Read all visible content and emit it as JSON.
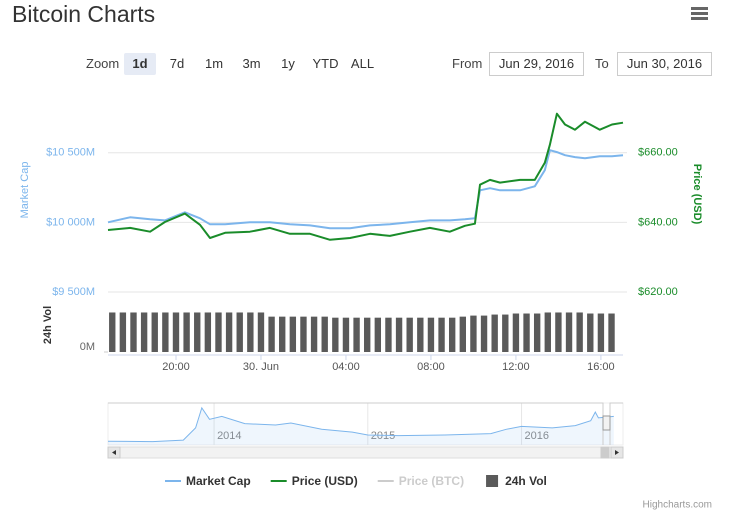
{
  "header": {
    "title": "Bitcoin Charts"
  },
  "range_selector": {
    "zoom_label": "Zoom",
    "buttons": [
      "1d",
      "7d",
      "1m",
      "3m",
      "1y",
      "YTD",
      "ALL"
    ],
    "selected": 0,
    "from_label": "From",
    "from_value": "Jun 29, 2016",
    "to_label": "To",
    "to_value": "Jun 30, 2016"
  },
  "chart_data": {
    "type": "line",
    "y_label": "Market Cap",
    "y2_label": "Price (USD)",
    "vol_label": "24h Vol",
    "xlim": [
      16.8,
      41.04
    ],
    "xticks": [
      {
        "value": 20,
        "label": "20:00"
      },
      {
        "value": 24,
        "label": "30. Jun"
      },
      {
        "value": 28,
        "label": "04:00"
      },
      {
        "value": 32,
        "label": "08:00"
      },
      {
        "value": 36,
        "label": "12:00"
      },
      {
        "value": 40,
        "label": "16:00"
      }
    ],
    "ylim": [
      9500,
      10950
    ],
    "yticks": [
      {
        "value": 9500,
        "label": "$9 500M"
      },
      {
        "value": 10000,
        "label": "$10 000M"
      },
      {
        "value": 10500,
        "label": "$10 500M"
      }
    ],
    "y2lim": [
      620,
      678
    ],
    "y2ticks": [
      {
        "value": 620,
        "label": "$620.00"
      },
      {
        "value": 640,
        "label": "$640.00"
      },
      {
        "value": 660,
        "label": "$660.00"
      }
    ],
    "vol_ylim": [
      0,
      50
    ],
    "vol_yticks": [
      {
        "value": 0,
        "label": "0M"
      }
    ],
    "grid": true,
    "legend": "bottom",
    "series": [
      {
        "name": "Market Cap",
        "color": "#7cb5ec",
        "type": "line",
        "x": [
          16.8,
          17.84,
          18.78,
          19.48,
          20.42,
          21.13,
          21.6,
          22.31,
          23.48,
          24.42,
          25.36,
          26.31,
          27.25,
          28.19,
          29.13,
          30.07,
          31.01,
          31.95,
          32.89,
          33.6,
          34.07,
          34.31,
          34.78,
          35.25,
          36.19,
          36.89,
          37.36,
          37.6,
          37.93,
          38.31,
          38.78,
          39.25,
          39.95,
          40.52,
          41.04
        ],
        "values": [
          10000,
          10036,
          10022,
          10014,
          10072,
          10029,
          9986,
          9986,
          10000,
          10000,
          9986,
          9978,
          9957,
          9957,
          9978,
          9986,
          10000,
          10014,
          10014,
          10022,
          10029,
          10230,
          10245,
          10230,
          10230,
          10259,
          10374,
          10518,
          10504,
          10482,
          10468,
          10460,
          10475,
          10475,
          10482
        ]
      },
      {
        "name": "Price (USD)",
        "color": "#1a8c2a",
        "type": "line",
        "axis": "y2",
        "x": [
          16.8,
          17.84,
          18.78,
          19.48,
          20.42,
          21.13,
          21.6,
          22.31,
          23.48,
          24.42,
          25.36,
          26.31,
          27.25,
          28.19,
          29.13,
          30.07,
          31.01,
          31.95,
          32.89,
          33.6,
          34.07,
          34.31,
          34.78,
          35.25,
          36.19,
          36.89,
          37.36,
          37.6,
          37.93,
          38.31,
          38.78,
          39.25,
          39.95,
          40.52,
          41.04
        ],
        "values": [
          637.8,
          638.4,
          637.3,
          640.1,
          642.5,
          639.3,
          635.5,
          637.0,
          637.3,
          638.4,
          636.7,
          636.7,
          635.0,
          635.5,
          636.7,
          636.1,
          637.3,
          638.4,
          637.3,
          639.0,
          639.6,
          650.8,
          652.2,
          651.4,
          652.2,
          652.2,
          657.1,
          662.3,
          671.2,
          668.1,
          666.6,
          668.9,
          666.6,
          668.1,
          668.6
        ]
      },
      {
        "name": "Price (BTC)",
        "color": "#cccccc",
        "type": "line",
        "visible": false
      },
      {
        "name": "24h Vol",
        "color": "#5a5a5a",
        "type": "bar",
        "axis": "vol",
        "x": [
          17,
          17.5,
          18,
          18.5,
          19,
          19.5,
          20,
          20.5,
          21,
          21.5,
          22,
          22.5,
          23,
          23.5,
          24,
          24.5,
          25,
          25.5,
          26,
          26.5,
          27,
          27.5,
          28,
          28.5,
          29,
          29.5,
          30,
          30.5,
          31,
          31.5,
          32,
          32.5,
          33,
          33.5,
          34,
          34.5,
          35,
          35.5,
          36,
          36.5,
          37,
          37.5,
          38,
          38.5,
          39,
          39.5,
          40,
          40.5
        ],
        "values": [
          38,
          38,
          38,
          38,
          38,
          38,
          38,
          38,
          38,
          38,
          38,
          38,
          38,
          38,
          38,
          34,
          34,
          34,
          34,
          34,
          34,
          33,
          33,
          33,
          33,
          33,
          33,
          33,
          33,
          33,
          33,
          33,
          33,
          34,
          35,
          35,
          36,
          36,
          37,
          37,
          37,
          38,
          38,
          38,
          38,
          37,
          37,
          37
        ]
      }
    ],
    "navigator": {
      "color": "#7cb5ec",
      "xlim": [
        2013.31,
        2016.66
      ],
      "xticks": [
        2014,
        2015,
        2016
      ],
      "ylim": [
        0,
        14000
      ],
      "x": [
        2013.31,
        2013.6,
        2013.8,
        2013.88,
        2013.92,
        2013.97,
        2014.05,
        2014.2,
        2014.4,
        2014.5,
        2014.7,
        2014.9,
        2015.0,
        2015.2,
        2015.5,
        2015.8,
        2015.9,
        2016.0,
        2016.2,
        2016.35,
        2016.45,
        2016.48,
        2016.5,
        2016.6
      ],
      "values": [
        1300,
        1200,
        1700,
        6000,
        13000,
        9000,
        10000,
        7500,
        7000,
        7700,
        5500,
        4500,
        3500,
        3300,
        3500,
        4000,
        5500,
        6500,
        6000,
        6800,
        8500,
        11500,
        9500,
        10000
      ]
    },
    "credits": "Highcharts.com"
  }
}
